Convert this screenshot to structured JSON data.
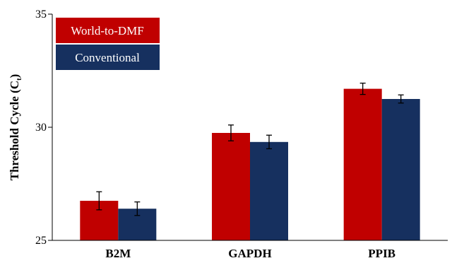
{
  "chart_data": {
    "type": "bar",
    "title": "",
    "xlabel": "",
    "ylabel": "Threshold Cycle (C",
    "ylabel_subscript": "t",
    "ylabel_suffix": ")",
    "ylim": [
      25,
      35
    ],
    "yticks": [
      "25",
      "30",
      "35"
    ],
    "categories": [
      "B2M",
      "GAPDH",
      "PPIB"
    ],
    "series": [
      {
        "name": "World-to-DMF",
        "color": "#c00000",
        "values": [
          26.75,
          29.75,
          31.7
        ],
        "errors": [
          0.4,
          0.35,
          0.25
        ]
      },
      {
        "name": "Conventional",
        "color": "#16305f",
        "values": [
          26.4,
          29.35,
          31.25
        ],
        "errors": [
          0.3,
          0.3,
          0.18
        ]
      }
    ],
    "legend_position": "top-left",
    "grid": false
  }
}
